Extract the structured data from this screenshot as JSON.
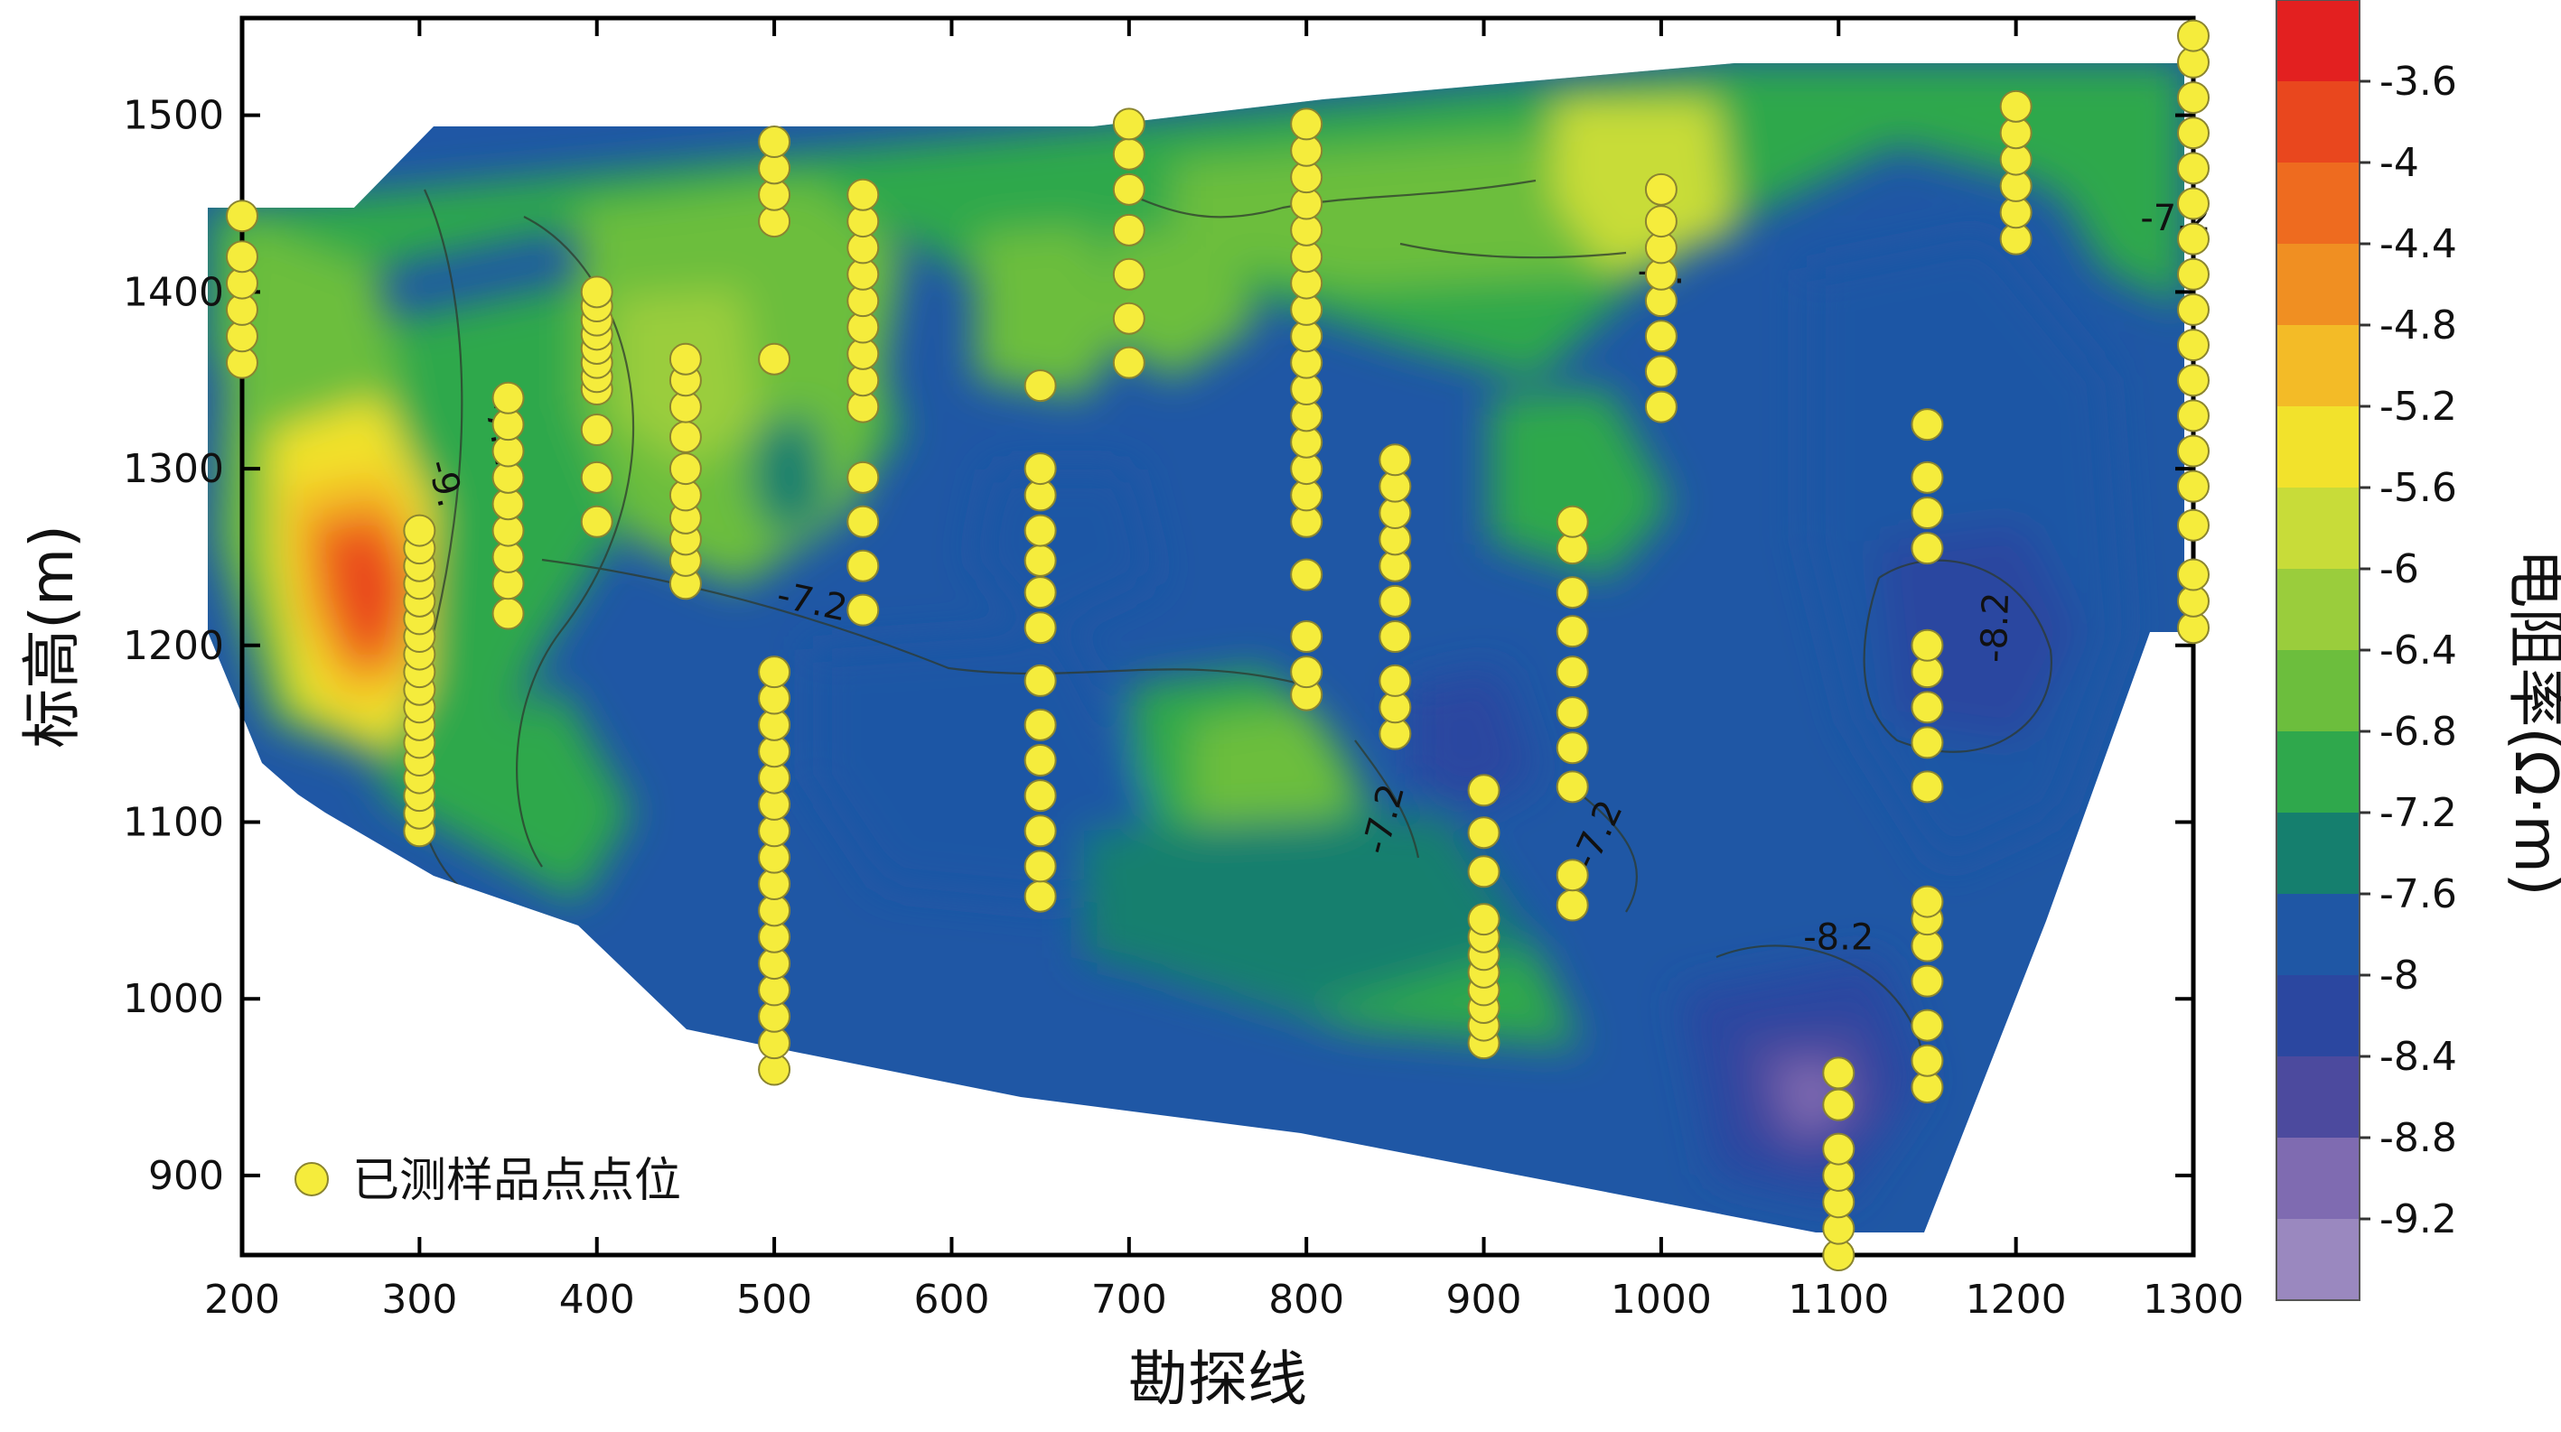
{
  "chart_data": {
    "type": "contour",
    "xlabel": "勘探线",
    "ylabel": "标高(m)",
    "xlim": [
      200,
      1300
    ],
    "ylim": [
      855,
      1555
    ],
    "xticks": [
      200,
      300,
      400,
      500,
      600,
      700,
      800,
      900,
      1000,
      1100,
      1200,
      1300
    ],
    "yticks": [
      900,
      1000,
      1100,
      1200,
      1300,
      1400,
      1500
    ],
    "colorbar": {
      "label": "电阻率(Ω·m)",
      "levels": [
        -3.6,
        -4,
        -4.4,
        -4.8,
        -5.2,
        -5.6,
        -6,
        -6.4,
        -6.8,
        -7.2,
        -7.6,
        -8,
        -8.4,
        -8.8,
        -9.2
      ],
      "colors": [
        "#e32020",
        "#e9471e",
        "#ee6b1f",
        "#f08f22",
        "#f3bb27",
        "#f2e22c",
        "#c8dc39",
        "#9acd3c",
        "#6cbe3d",
        "#2fa84c",
        "#157f6e",
        "#1f57a5",
        "#2b47a0",
        "#4c4a9e",
        "#7f6bb1",
        "#9a88bf"
      ]
    },
    "grid": false,
    "contour_labels": [
      "-7.2",
      "-6.",
      "-7.2",
      "-9.",
      "-7.2",
      "-7.2",
      "-7.2",
      "-8.2",
      "-8.2"
    ],
    "legend": {
      "position": "bottom-left",
      "entries": [
        "已测样品点点位"
      ]
    },
    "sample_points": {
      "name": "已测样品点点位",
      "columns": [
        {
          "x": 200,
          "y": [
            1360,
            1375,
            1390,
            1405,
            1420,
            1443
          ]
        },
        {
          "x": 300,
          "y": [
            1095,
            1105,
            1115,
            1125,
            1135,
            1145,
            1155,
            1165,
            1175,
            1185,
            1195,
            1205,
            1215,
            1225,
            1235,
            1245,
            1255,
            1265
          ]
        },
        {
          "x": 350,
          "y": [
            1218,
            1235,
            1250,
            1265,
            1280,
            1295,
            1310,
            1325,
            1340
          ]
        },
        {
          "x": 400,
          "y": [
            1270,
            1295,
            1322,
            1345,
            1352,
            1360,
            1368,
            1376,
            1384,
            1392,
            1400
          ]
        },
        {
          "x": 450,
          "y": [
            1235,
            1248,
            1260,
            1272,
            1285,
            1300,
            1318,
            1335,
            1350,
            1362
          ]
        },
        {
          "x": 500,
          "y": [
            960,
            975,
            990,
            1005,
            1020,
            1035,
            1050,
            1065,
            1080,
            1095,
            1110,
            1125,
            1140,
            1155,
            1170,
            1185,
            1440,
            1455,
            1470,
            1485,
            1362
          ]
        },
        {
          "x": 550,
          "y": [
            1220,
            1245,
            1270,
            1295,
            1335,
            1350,
            1365,
            1380,
            1395,
            1410,
            1425,
            1440,
            1455
          ]
        },
        {
          "x": 650,
          "y": [
            1058,
            1075,
            1095,
            1115,
            1135,
            1155,
            1180,
            1210,
            1230,
            1248,
            1265,
            1285,
            1300,
            1347
          ]
        },
        {
          "x": 700,
          "y": [
            1360,
            1385,
            1410,
            1435,
            1458,
            1478,
            1495
          ]
        },
        {
          "x": 800,
          "y": [
            1172,
            1185,
            1205,
            1240,
            1270,
            1285,
            1300,
            1315,
            1330,
            1345,
            1360,
            1375,
            1390,
            1405,
            1420,
            1435,
            1450,
            1465,
            1480,
            1495
          ]
        },
        {
          "x": 850,
          "y": [
            1150,
            1165,
            1180,
            1205,
            1225,
            1245,
            1260,
            1275,
            1290,
            1305
          ]
        },
        {
          "x": 900,
          "y": [
            975,
            985,
            995,
            1005,
            1015,
            1025,
            1035,
            1045,
            1072,
            1094,
            1118
          ]
        },
        {
          "x": 950,
          "y": [
            1053,
            1070,
            1120,
            1142,
            1162,
            1185,
            1208,
            1230,
            1255,
            1270
          ]
        },
        {
          "x": 1000,
          "y": [
            1335,
            1355,
            1375,
            1395,
            1410,
            1425,
            1440,
            1458
          ]
        },
        {
          "x": 1100,
          "y": [
            855,
            870,
            885,
            900,
            915,
            940,
            958
          ]
        },
        {
          "x": 1150,
          "y": [
            950,
            965,
            985,
            1010,
            1030,
            1045,
            1055,
            1120,
            1145,
            1165,
            1185,
            1200,
            1255,
            1275,
            1295,
            1325
          ]
        },
        {
          "x": 1200,
          "y": [
            1430,
            1445,
            1460,
            1475,
            1490,
            1505
          ]
        },
        {
          "x": 1300,
          "y": [
            1210,
            1225,
            1240,
            1268,
            1290,
            1310,
            1330,
            1350,
            1370,
            1390,
            1410,
            1430,
            1450,
            1470,
            1490,
            1510,
            1530,
            1545
          ]
        }
      ]
    }
  }
}
